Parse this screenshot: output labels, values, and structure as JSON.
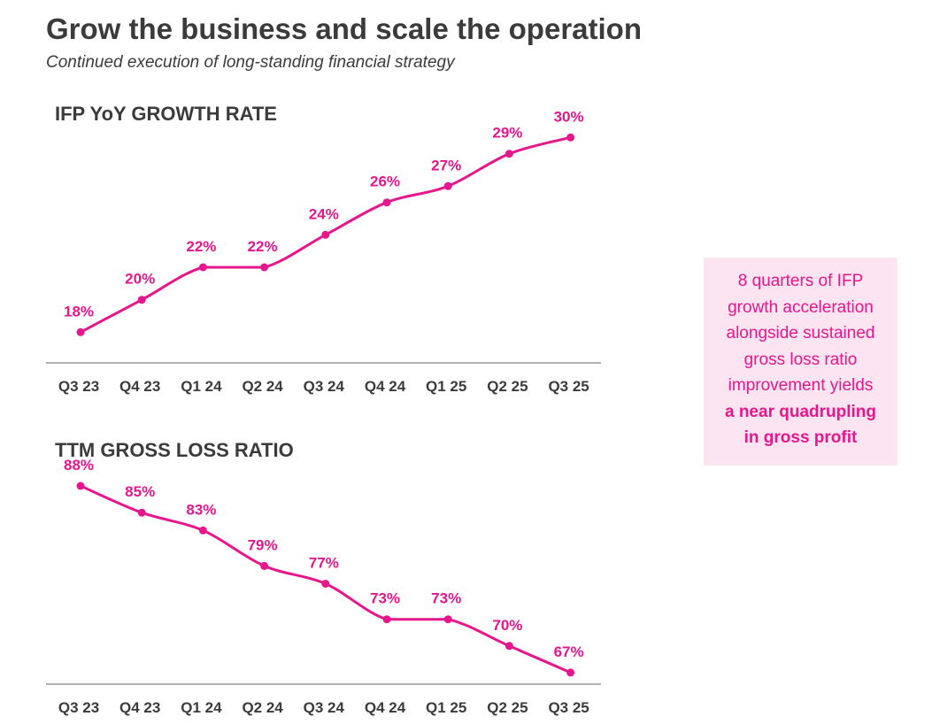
{
  "header": {
    "title": "Grow the business and scale the operation",
    "subtitle": "Continued execution of long-standing financial strategy"
  },
  "colors": {
    "accent": "#e6178d",
    "text": "#3b3b3b",
    "axis": "#999999",
    "callout_bg": "#fde4f1"
  },
  "chart_data": [
    {
      "type": "line",
      "title": "IFP YoY GROWTH RATE",
      "categories": [
        "Q3 23",
        "Q4 23",
        "Q1 24",
        "Q2 24",
        "Q3 24",
        "Q4 24",
        "Q1 25",
        "Q2 25",
        "Q3 25"
      ],
      "values": [
        18,
        20,
        22,
        22,
        24,
        26,
        27,
        29,
        30
      ],
      "data_labels": [
        "18%",
        "20%",
        "22%",
        "22%",
        "24%",
        "26%",
        "27%",
        "29%",
        "30%"
      ],
      "unit": "%",
      "xlabel": "",
      "ylabel": "",
      "ylim": [
        16,
        31
      ],
      "grid": false,
      "legend": "none"
    },
    {
      "type": "line",
      "title": "TTM GROSS LOSS RATIO",
      "categories": [
        "Q3 23",
        "Q4 23",
        "Q1 24",
        "Q2 24",
        "Q3 24",
        "Q4 24",
        "Q1 25",
        "Q2 25",
        "Q3 25"
      ],
      "values": [
        88,
        85,
        83,
        79,
        77,
        73,
        73,
        70,
        67
      ],
      "data_labels": [
        "88%",
        "85%",
        "83%",
        "79%",
        "77%",
        "73%",
        "73%",
        "70%",
        "67%"
      ],
      "unit": "%",
      "xlabel": "",
      "ylabel": "",
      "ylim": [
        65,
        89
      ],
      "grid": false,
      "legend": "none"
    }
  ],
  "callout": {
    "lines": [
      "8 quarters of IFP",
      "growth acceleration",
      "alongside sustained",
      "gross loss ratio",
      "improvement yields"
    ],
    "bold_lines": [
      "a near quadrupling",
      "in  gross profit"
    ]
  }
}
